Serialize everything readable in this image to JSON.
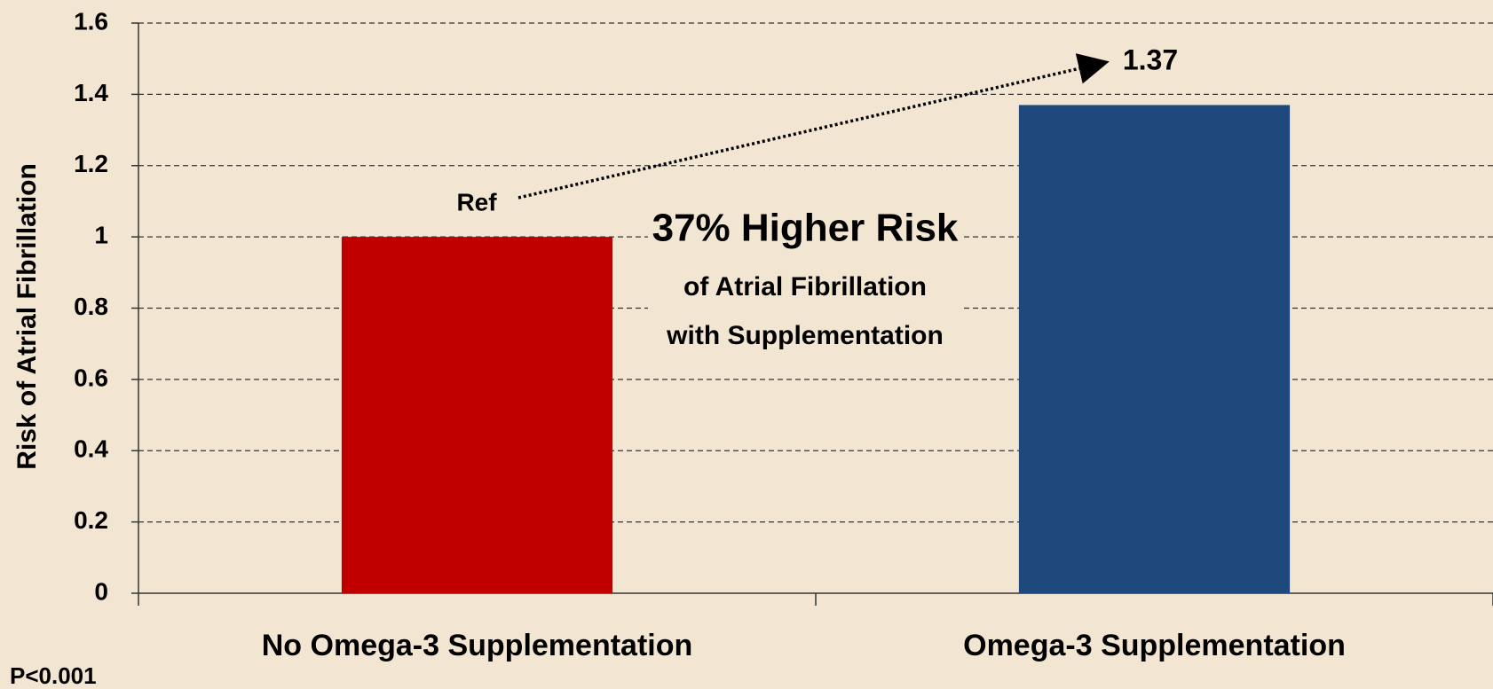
{
  "chart_data": {
    "type": "bar",
    "categories": [
      "No Omega-3 Supplementation",
      "Omega-3 Supplementation"
    ],
    "values": [
      1,
      1.37
    ],
    "colors": [
      "#c00000",
      "#1f497d"
    ],
    "ylabel": "Risk of Atrial Fibrillation",
    "ylim": [
      0,
      1.6
    ],
    "yticks": [
      0,
      0.2,
      0.4,
      0.6,
      0.8,
      1,
      1.2,
      1.4,
      1.6
    ],
    "grid": true,
    "annotations": [
      "Ref",
      "37% Higher Risk",
      "of Atrial Fibrillation",
      "with Supplementation"
    ],
    "footnote": "P<0.001"
  }
}
